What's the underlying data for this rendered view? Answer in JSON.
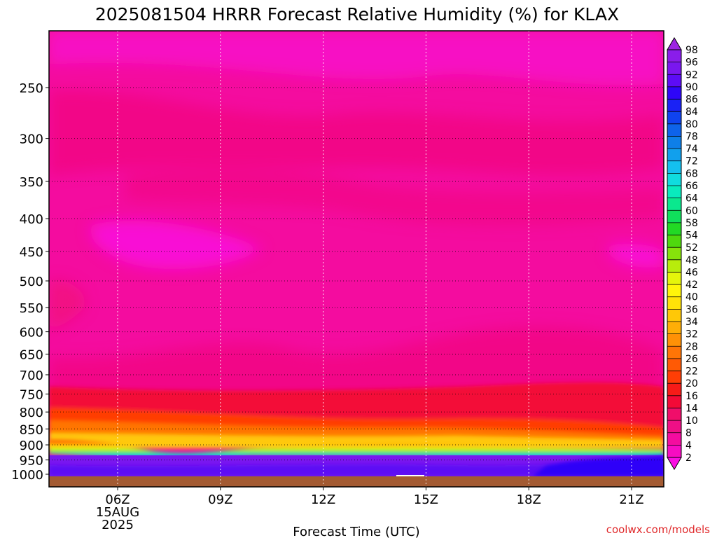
{
  "chart_data": {
    "type": "heatmap",
    "title": "2025081504 HRRR Forecast Relative Humidity (%) for KLAX",
    "xlabel": "Forecast Time (UTC)",
    "ylabel": "",
    "x_ticks": [
      "06Z",
      "09Z",
      "12Z",
      "15Z",
      "18Z",
      "21Z"
    ],
    "x_date_line1": "15AUG",
    "x_date_line2": "2025",
    "x_range_hours_from_06Z": [
      -2,
      16
    ],
    "y_ticks": [
      250,
      300,
      350,
      400,
      450,
      500,
      550,
      600,
      650,
      700,
      750,
      800,
      850,
      900,
      950,
      1000
    ],
    "y_range_hPa": [
      200,
      1000
    ],
    "y_scale": "log",
    "grid": true,
    "colorbar": {
      "position": "right",
      "levels": [
        98,
        96,
        92,
        90,
        86,
        84,
        80,
        78,
        74,
        72,
        68,
        66,
        64,
        60,
        58,
        54,
        52,
        48,
        46,
        42,
        40,
        36,
        34,
        32,
        28,
        26,
        22,
        20,
        16,
        14,
        10,
        8,
        4,
        2
      ],
      "colors": [
        "#9d26e2",
        "#8a1dea",
        "#7a17ef",
        "#5d0cf5",
        "#2e06f8",
        "#1a22f5",
        "#0f43ef",
        "#0e63ea",
        "#0e7fe8",
        "#11a0ed",
        "#14c0ef",
        "#10dcdf",
        "#09ebbd",
        "#0ae88e",
        "#10df5b",
        "#22d925",
        "#4fd80e",
        "#86e20b",
        "#b8ec0c",
        "#e5f50b",
        "#fff50a",
        "#ffe208",
        "#ffc807",
        "#ffae07",
        "#ff9106",
        "#ff7506",
        "#ff5a05",
        "#ff3e05",
        "#f71b18",
        "#f30a37",
        "#f00e6a",
        "#ef0f86",
        "#f40c9f",
        "#f70cc2",
        "#fa0ee2"
      ]
    },
    "description_levels": [
      {
        "pressure_range": [
          200,
          880
        ],
        "rh_range": [
          2,
          16
        ]
      },
      {
        "pressure_range": [
          880,
          920
        ],
        "rh_range": [
          20,
          60
        ]
      },
      {
        "pressure_range": [
          920,
          1000
        ],
        "rh_range": [
          86,
          98
        ]
      }
    ],
    "surface": "below ground (brown) near 1000 hPa"
  },
  "credit": "coolwx.com/models"
}
